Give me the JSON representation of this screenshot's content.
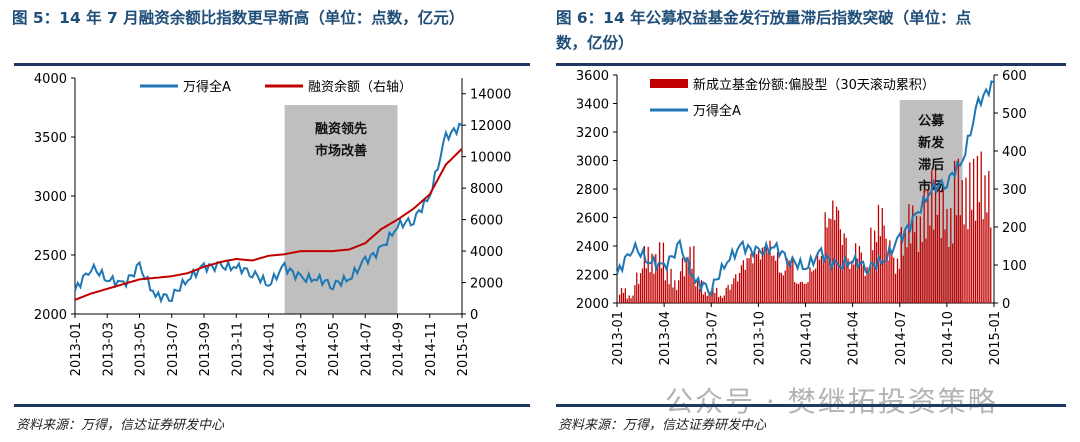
{
  "left": {
    "title": "图 5：14 年 7 月融资余额比指数更早新高（单位：点数，亿元）",
    "source": "资料来源：万得，信达证券研发中心"
  },
  "right": {
    "title_line1": "图 6：14 年公募权益基金发行放量滞后指数突破（单位：点",
    "title_line2": "数，亿份）",
    "source": "资料来源：万得，信达证券研发中心"
  },
  "watermark": "公众号 · 樊继拓投资策略",
  "chart_data": [
    {
      "type": "line",
      "title": "图 5",
      "ylim": [
        2000,
        4000
      ],
      "y2lim": [
        0,
        15000
      ],
      "yticks": [
        "4000",
        "3500",
        "3000",
        "2500",
        "2000"
      ],
      "y2ticks": [
        "14000",
        "12000",
        "10000",
        "8000",
        "6000",
        "4000",
        "2000",
        "0"
      ],
      "xticks": [
        "2013-01",
        "2013-03",
        "2013-05",
        "2013-07",
        "2013-09",
        "2013-11",
        "2014-01",
        "2014-03",
        "2014-05",
        "2014-07",
        "2014-09",
        "2014-11",
        "2015-01"
      ],
      "shade": {
        "from": "2014-02",
        "to": "2014-09",
        "label": "融资领先市场改善"
      },
      "series": [
        {
          "name": "万得全A",
          "axis": "left",
          "color": "#1f77b4",
          "values": [
            2200,
            2400,
            2300,
            2250,
            2400,
            2150,
            2150,
            2300,
            2400,
            2400,
            2400,
            2350,
            2250,
            2400,
            2300,
            2300,
            2250,
            2300,
            2450,
            2550,
            2750,
            2800,
            3000,
            3500,
            3600
          ]
        },
        {
          "name": "融资余额（右轴）",
          "axis": "right",
          "color": "#c00000",
          "values": [
            900,
            1300,
            1600,
            1900,
            2200,
            2300,
            2400,
            2600,
            3000,
            3300,
            3500,
            3400,
            3700,
            3800,
            4000,
            4000,
            4000,
            4100,
            4500,
            5400,
            6000,
            6700,
            7600,
            9500,
            10500
          ]
        }
      ]
    },
    {
      "type": "bar+line",
      "title": "图 6",
      "ylim": [
        2000,
        3600
      ],
      "y2lim": [
        0,
        600
      ],
      "yticks": [
        "3600",
        "3400",
        "3200",
        "3000",
        "2800",
        "2600",
        "2400",
        "2200",
        "2000"
      ],
      "y2ticks": [
        "600",
        "500",
        "400",
        "300",
        "200",
        "100",
        "0"
      ],
      "xticks": [
        "2013-01",
        "2013-04",
        "2013-07",
        "2013-10",
        "2014-01",
        "2014-04",
        "2014-07",
        "2014-10",
        "2015-01"
      ],
      "shade": {
        "from": "2014-07",
        "to": "2014-11",
        "label": "公募新发滞后市场"
      },
      "series": [
        {
          "name": "新成立基金份额:偏股型（30天滚动累积）",
          "axis": "right",
          "type": "bar",
          "color": "#c00000",
          "values": [
            40,
            20,
            80,
            150,
            130,
            160,
            90,
            60,
            120,
            150,
            60,
            30,
            40,
            20,
            50,
            80,
            120,
            140,
            150,
            170,
            140,
            90,
            130,
            60,
            60,
            100,
            140,
            250,
            280,
            200,
            120,
            160,
            100,
            200,
            260,
            170,
            120,
            200,
            260,
            230,
            300,
            350,
            300,
            250,
            380,
            330,
            380,
            400,
            350
          ]
        },
        {
          "name": "万得全A",
          "axis": "left",
          "type": "line",
          "color": "#1f77b4",
          "values": [
            2200,
            2400,
            2300,
            2250,
            2400,
            2150,
            2100,
            2300,
            2400,
            2350,
            2400,
            2300,
            2250,
            2350,
            2250,
            2300,
            2250,
            2300,
            2450,
            2600,
            2800,
            2850,
            3000,
            3400,
            3550
          ]
        }
      ]
    }
  ]
}
